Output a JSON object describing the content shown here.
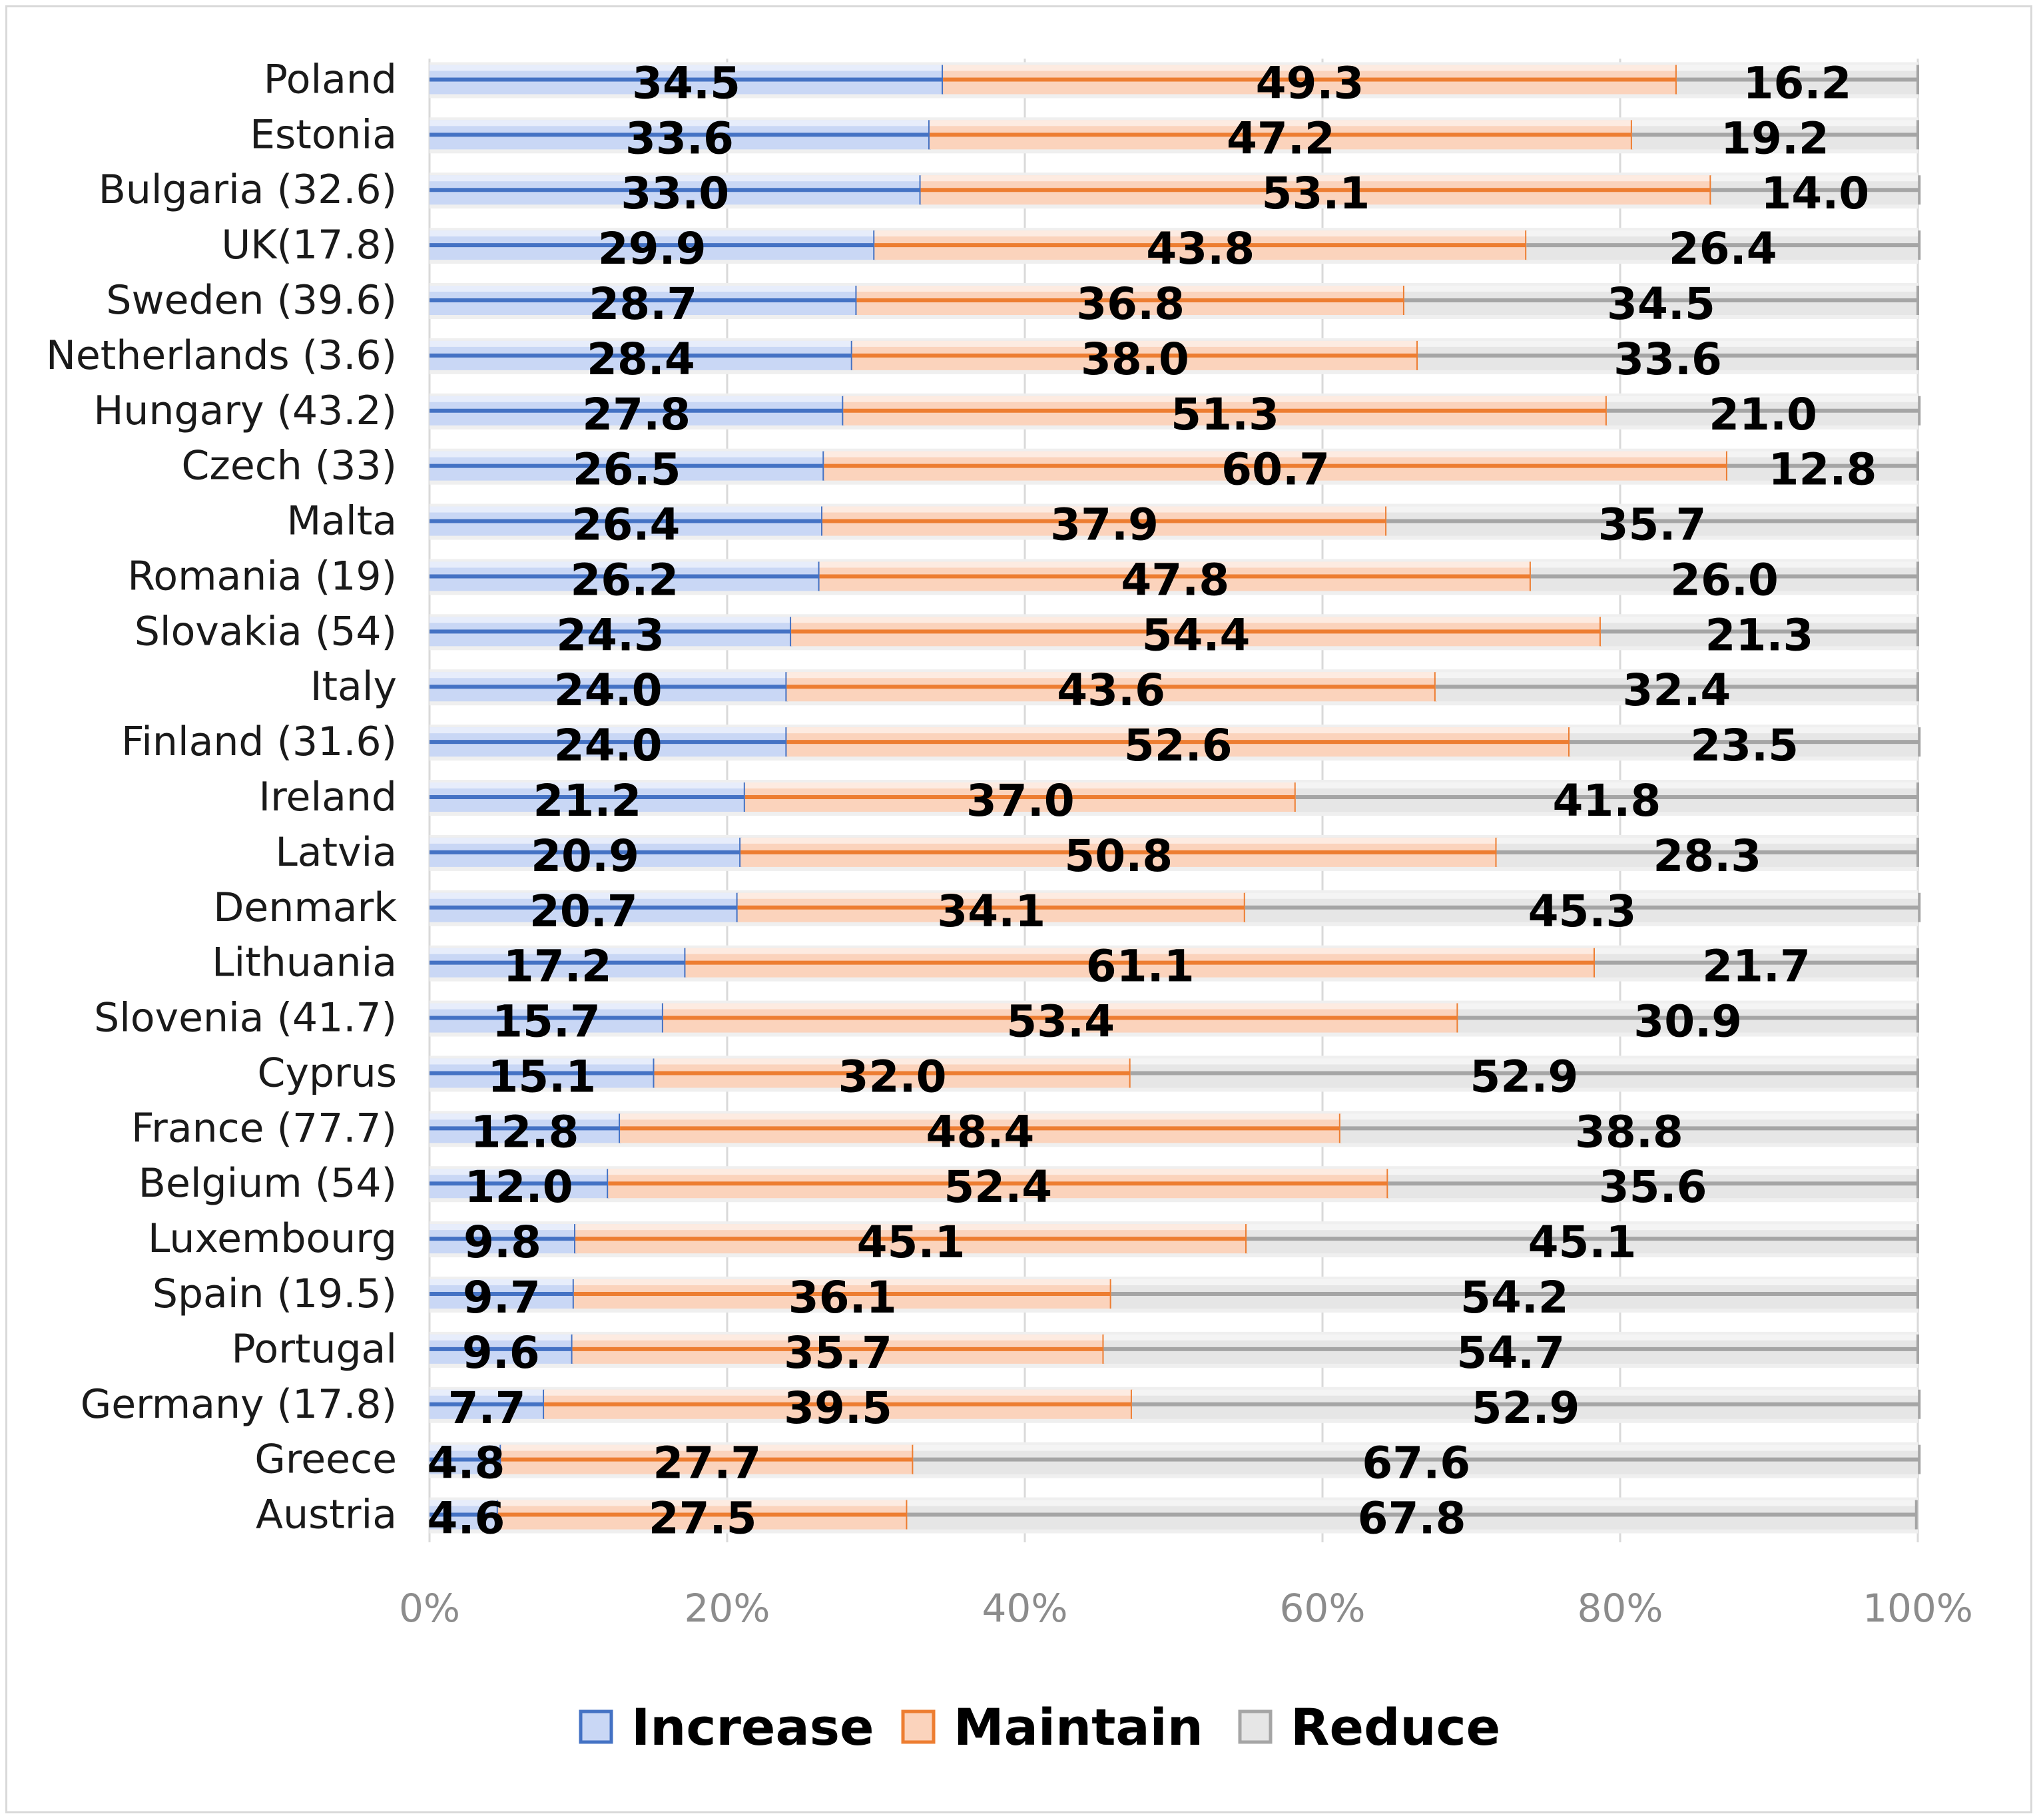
{
  "chart_data": {
    "type": "bar",
    "orientation": "horizontal",
    "stacked": "percent",
    "title": "",
    "xlabel": "",
    "ylabel": "",
    "xlim": [
      0,
      100
    ],
    "x_ticks": [
      "0%",
      "20%",
      "40%",
      "60%",
      "80%",
      "100%"
    ],
    "grid": true,
    "legend_position": "bottom",
    "categories": [
      "Poland",
      "Estonia",
      "Bulgaria (32.6)",
      "UK(17.8)",
      "Sweden (39.6)",
      "Netherlands (3.6)",
      "Hungary (43.2)",
      "Czech (33)",
      "Malta",
      "Romania (19)",
      "Slovakia (54)",
      "Italy",
      "Finland (31.6)",
      "Ireland",
      "Latvia",
      "Denmark",
      "Lithuania",
      "Slovenia (41.7)",
      "Cyprus",
      "France (77.7)",
      "Belgium (54)",
      "Luxembourg",
      "Spain (19.5)",
      "Portugal",
      "Germany (17.8)",
      "Greece",
      "Austria"
    ],
    "series": [
      {
        "name": "Increase",
        "color": "#4472c4",
        "fill": "#c9d7f5",
        "values": [
          34.5,
          33.6,
          33.0,
          29.9,
          28.7,
          28.4,
          27.8,
          26.5,
          26.4,
          26.2,
          24.3,
          24.0,
          24.0,
          21.2,
          20.9,
          20.7,
          17.2,
          15.7,
          15.1,
          12.8,
          12.0,
          9.8,
          9.7,
          9.6,
          7.7,
          4.8,
          4.6
        ]
      },
      {
        "name": "Maintain",
        "color": "#ed7d31",
        "fill": "#fbd3bc",
        "values": [
          49.3,
          47.2,
          53.1,
          43.8,
          36.8,
          38.0,
          51.3,
          60.7,
          37.9,
          47.8,
          54.4,
          43.6,
          52.6,
          37.0,
          50.8,
          34.1,
          61.1,
          53.4,
          32.0,
          48.4,
          52.4,
          45.1,
          36.1,
          35.7,
          39.5,
          27.7,
          27.5
        ]
      },
      {
        "name": "Reduce",
        "color": "#a5a5a5",
        "fill": "#e6e6e6",
        "values": [
          16.2,
          19.2,
          14.0,
          26.4,
          34.5,
          33.6,
          21.0,
          12.8,
          35.7,
          26.0,
          21.3,
          32.4,
          23.5,
          41.8,
          28.3,
          45.3,
          21.7,
          30.9,
          52.9,
          38.8,
          35.6,
          45.1,
          54.2,
          54.7,
          52.9,
          67.6,
          67.8
        ]
      }
    ]
  }
}
